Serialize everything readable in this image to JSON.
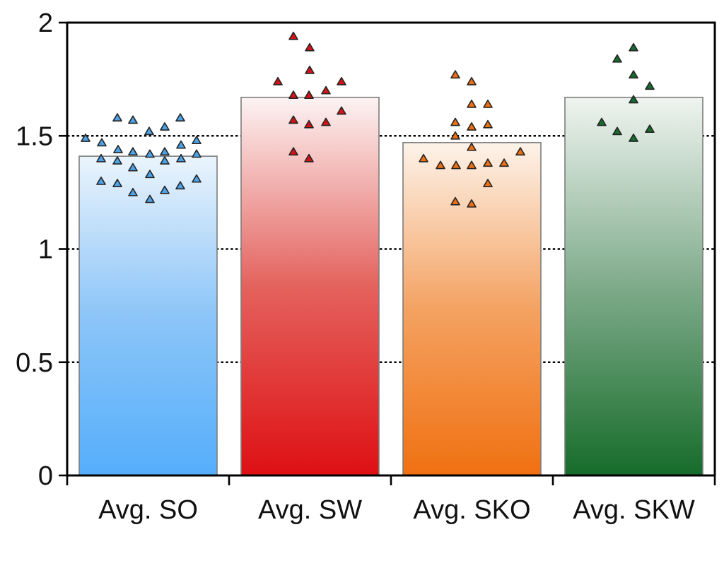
{
  "chart_data": {
    "type": "bar",
    "title": "",
    "xlabel": "",
    "ylabel": "",
    "categories": [
      "Avg. SO",
      "Avg. SW",
      "Avg. SKO",
      "Avg. SKW"
    ],
    "values": [
      1.41,
      1.67,
      1.47,
      1.67
    ],
    "ylim": [
      0,
      2
    ],
    "yticks": [
      0,
      0.5,
      1,
      1.5,
      2
    ],
    "ytick_labels": [
      "0",
      "0.5",
      "1",
      "1.5",
      "2"
    ],
    "gridlines": [
      0.5,
      1,
      1.5
    ],
    "grid_style": "dotted",
    "legend_position": "none",
    "colors": {
      "axis": "#000000",
      "text": "#161616",
      "bar_border": "#7d7d7d",
      "marker_border": "#242424"
    },
    "bar_styles": [
      {
        "name": "SO",
        "gradient_top": "#EBF4FC",
        "gradient_mid": "#8CC5F8",
        "gradient_bottom": "#55AEFB",
        "marker_fill": "#4DA3E8"
      },
      {
        "name": "SW",
        "gradient_top": "#FCF3F3",
        "gradient_mid": "#E4625D",
        "gradient_bottom": "#DE1014",
        "marker_fill": "#D51317"
      },
      {
        "name": "SKO",
        "gradient_top": "#FDF3EA",
        "gradient_mid": "#F4A262",
        "gradient_bottom": "#F07010",
        "marker_fill": "#EE6F12"
      },
      {
        "name": "SKW",
        "gradient_top": "#EFF4F0",
        "gradient_mid": "#7FAB8B",
        "gradient_bottom": "#166C2A",
        "marker_fill": "#176B2C"
      }
    ],
    "scatter_series": [
      {
        "category": "Avg. SO",
        "points": [
          {
            "dx": -43.5,
            "y": 1.58
          },
          {
            "dx": -21.5,
            "y": 1.57
          },
          {
            "dx": 45.5,
            "y": 1.58
          },
          {
            "dx": 1.5,
            "y": 1.52
          },
          {
            "dx": 23.5,
            "y": 1.54
          },
          {
            "dx": -88.5,
            "y": 1.49
          },
          {
            "dx": -65.5,
            "y": 1.47
          },
          {
            "dx": 46.5,
            "y": 1.46
          },
          {
            "dx": 68.5,
            "y": 1.48
          },
          {
            "dx": -42.5,
            "y": 1.44
          },
          {
            "dx": -21.5,
            "y": 1.43
          },
          {
            "dx": 2.5,
            "y": 1.42
          },
          {
            "dx": 23.5,
            "y": 1.43
          },
          {
            "dx": 46.5,
            "y": 1.4
          },
          {
            "dx": 68.5,
            "y": 1.42
          },
          {
            "dx": -66.5,
            "y": 1.4
          },
          {
            "dx": -43.5,
            "y": 1.39
          },
          {
            "dx": -21.5,
            "y": 1.36
          },
          {
            "dx": 23.5,
            "y": 1.39
          },
          {
            "dx": 2.5,
            "y": 1.33
          },
          {
            "dx": -66.5,
            "y": 1.3
          },
          {
            "dx": -43.5,
            "y": 1.29
          },
          {
            "dx": -21.5,
            "y": 1.25
          },
          {
            "dx": 2.5,
            "y": 1.22
          },
          {
            "dx": 23.5,
            "y": 1.26
          },
          {
            "dx": 45.5,
            "y": 1.28
          },
          {
            "dx": 68.5,
            "y": 1.31
          }
        ]
      },
      {
        "category": "Avg. SW",
        "points": [
          {
            "dx": -23.5,
            "y": 1.94
          },
          {
            "dx": -0.5,
            "y": 1.89
          },
          {
            "dx": -0.5,
            "y": 1.79
          },
          {
            "dx": -45.5,
            "y": 1.74
          },
          {
            "dx": 44.5,
            "y": 1.74
          },
          {
            "dx": -23.5,
            "y": 1.68
          },
          {
            "dx": -1.5,
            "y": 1.68
          },
          {
            "dx": 22.5,
            "y": 1.7
          },
          {
            "dx": 44.5,
            "y": 1.61
          },
          {
            "dx": -23.5,
            "y": 1.57
          },
          {
            "dx": -1.5,
            "y": 1.55
          },
          {
            "dx": 22.5,
            "y": 1.56
          },
          {
            "dx": -23.5,
            "y": 1.43
          },
          {
            "dx": -1.5,
            "y": 1.4
          }
        ]
      },
      {
        "category": "Avg. SKO",
        "points": [
          {
            "dx": -23.5,
            "y": 1.77
          },
          {
            "dx": -0.5,
            "y": 1.74
          },
          {
            "dx": -0.5,
            "y": 1.64
          },
          {
            "dx": 22.5,
            "y": 1.64
          },
          {
            "dx": -23.5,
            "y": 1.56
          },
          {
            "dx": -0.5,
            "y": 1.54
          },
          {
            "dx": 22.5,
            "y": 1.55
          },
          {
            "dx": -23.5,
            "y": 1.5
          },
          {
            "dx": -0.5,
            "y": 1.45
          },
          {
            "dx": 68.5,
            "y": 1.43
          },
          {
            "dx": -68.5,
            "y": 1.4
          },
          {
            "dx": -44.5,
            "y": 1.37
          },
          {
            "dx": -22.5,
            "y": 1.37
          },
          {
            "dx": -0.5,
            "y": 1.37
          },
          {
            "dx": 22.5,
            "y": 1.38
          },
          {
            "dx": 45.5,
            "y": 1.38
          },
          {
            "dx": 22.5,
            "y": 1.29
          },
          {
            "dx": -23.5,
            "y": 1.21
          },
          {
            "dx": -0.5,
            "y": 1.2
          }
        ]
      },
      {
        "category": "Avg. SKW",
        "points": [
          {
            "dx": -0.5,
            "y": 1.89
          },
          {
            "dx": -23.5,
            "y": 1.84
          },
          {
            "dx": -0.5,
            "y": 1.77
          },
          {
            "dx": 22.5,
            "y": 1.72
          },
          {
            "dx": -0.5,
            "y": 1.66
          },
          {
            "dx": -45.5,
            "y": 1.56
          },
          {
            "dx": -23.5,
            "y": 1.52
          },
          {
            "dx": -0.5,
            "y": 1.49
          },
          {
            "dx": 22.5,
            "y": 1.53
          }
        ]
      }
    ]
  }
}
